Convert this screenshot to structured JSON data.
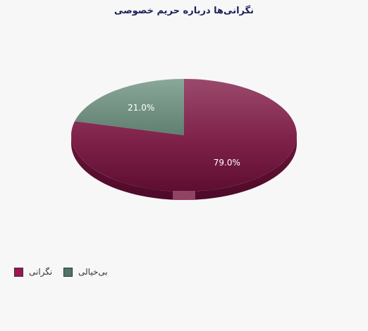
{
  "chart_data": {
    "type": "pie",
    "title": "نگرانی‌ها درباره حریم خصوصی",
    "slices": [
      {
        "label": "نگرانی",
        "value": 79.0,
        "display": "79.0%",
        "color": "#7a1a45"
      },
      {
        "label": "بی‌خیالی",
        "value": 21.0,
        "display": "21.0%",
        "color": "#5d7f6e"
      }
    ],
    "legend_position": "bottom-left",
    "style": "3d"
  }
}
